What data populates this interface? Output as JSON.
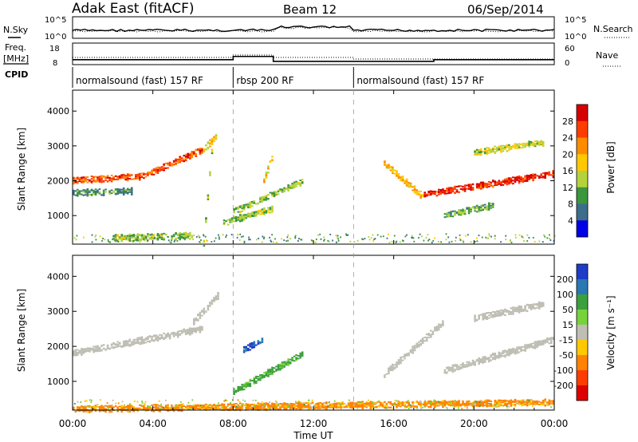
{
  "header": {
    "station": "Adak East (fitACF)",
    "beam": "Beam 12",
    "date": "06/Sep/2014"
  },
  "top_panels": {
    "left_labels": {
      "nsky": "N.Sky",
      "freq": "Freq.",
      "freq_unit": "[MHz]",
      "cpid": "CPID"
    },
    "right_labels": {
      "nsearch": "N.Search",
      "nave": "Nave"
    },
    "noise_ticks": [
      "10^5",
      "10^0"
    ],
    "freq_ticks": [
      "18",
      "8"
    ],
    "nave_ticks": [
      "60",
      "0"
    ]
  },
  "cpid_segments": [
    {
      "label": "normalsound (fast) 157 RF",
      "start_hour": 0,
      "end_hour": 8
    },
    {
      "label": "rbsp 200 RF",
      "start_hour": 8,
      "end_hour": 14
    },
    {
      "label": "normalsound (fast) 157 RF",
      "start_hour": 14,
      "end_hour": 24
    }
  ],
  "colorbars": {
    "power": {
      "label": "Power [dB]",
      "ticks": [
        "28",
        "24",
        "20",
        "16",
        "12",
        "8",
        "4"
      ],
      "colors": [
        "#d60000",
        "#ff3c00",
        "#ff8c00",
        "#ffc800",
        "#b4d23c",
        "#3c963c",
        "#3c6e8c",
        "#0000e6"
      ]
    },
    "velocity": {
      "label": "Velocity [m s⁻¹]",
      "ticks": [
        "200",
        "100",
        "50",
        "15",
        "-15",
        "-50",
        "-100",
        "-200"
      ],
      "colors": [
        "#1e3cc8",
        "#2878b4",
        "#3ca03c",
        "#78d23c",
        "#bebeb4",
        "#ffc800",
        "#ff8200",
        "#ff3c00",
        "#dc0000"
      ]
    }
  },
  "chart_data": [
    {
      "type": "heatmap",
      "title": "Power",
      "xlabel": "Time UT",
      "ylabel": "Slant Range [km]",
      "xticks": [
        "00:00",
        "04:00",
        "08:00",
        "12:00",
        "16:00",
        "20:00",
        "00:00"
      ],
      "xlim_hours": [
        0,
        24
      ],
      "ylim": [
        180,
        4600
      ],
      "yticks": [
        1000,
        2000,
        3000,
        4000
      ],
      "colorbar_range_db": [
        0,
        30
      ],
      "echo_bands": [
        {
          "t_start": 0.0,
          "t_end": 3.5,
          "r_start": 2000,
          "r_end": 2120,
          "power": 24
        },
        {
          "t_start": 3.5,
          "t_end": 6.5,
          "r_start": 2120,
          "r_end": 2900,
          "power": 24
        },
        {
          "t_start": 6.5,
          "t_end": 7.2,
          "r_start": 2900,
          "r_end": 3300,
          "power": 16
        },
        {
          "t_start": 0.0,
          "t_end": 3.0,
          "r_start": 1650,
          "r_end": 1700,
          "power": 8
        },
        {
          "t_start": 6.5,
          "t_end": 7.0,
          "r_start": 200,
          "r_end": 3500,
          "power": 12
        },
        {
          "t_start": 7.5,
          "t_end": 10.0,
          "r_start": 800,
          "r_end": 1200,
          "power": 12
        },
        {
          "t_start": 8.0,
          "t_end": 11.5,
          "r_start": 1100,
          "r_end": 2000,
          "power": 12
        },
        {
          "t_start": 9.5,
          "t_end": 10.0,
          "r_start": 2000,
          "r_end": 2800,
          "power": 16
        },
        {
          "t_start": 15.5,
          "t_end": 17.5,
          "r_start": 2500,
          "r_end": 1500,
          "power": 18
        },
        {
          "t_start": 17.5,
          "t_end": 24.0,
          "r_start": 1600,
          "r_end": 2200,
          "power": 26
        },
        {
          "t_start": 18.5,
          "t_end": 21.0,
          "r_start": 1000,
          "r_end": 1300,
          "power": 10
        },
        {
          "t_start": 20.0,
          "t_end": 23.5,
          "r_start": 2800,
          "r_end": 3100,
          "power": 14
        },
        {
          "t_start": 2.0,
          "t_end": 6.0,
          "r_start": 350,
          "r_end": 420,
          "power": 12
        }
      ]
    },
    {
      "type": "heatmap",
      "title": "Velocity",
      "xlabel": "Time UT",
      "ylabel": "Slant Range [km]",
      "xticks": [
        "00:00",
        "04:00",
        "08:00",
        "12:00",
        "16:00",
        "20:00",
        "00:00"
      ],
      "xlim_hours": [
        0,
        24
      ],
      "ylim": [
        180,
        4600
      ],
      "yticks": [
        1000,
        2000,
        3000,
        4000
      ],
      "colorbar_range": [
        -200,
        200
      ],
      "echo_bands": [
        {
          "t_start": 0.0,
          "t_end": 6.5,
          "r_start": 1800,
          "r_end": 2500,
          "velocity": 0
        },
        {
          "t_start": 6.0,
          "t_end": 7.3,
          "r_start": 2700,
          "r_end": 3500,
          "velocity": 0
        },
        {
          "t_start": 8.0,
          "t_end": 11.5,
          "r_start": 700,
          "r_end": 1800,
          "velocity": 60
        },
        {
          "t_start": 8.5,
          "t_end": 9.5,
          "r_start": 1900,
          "r_end": 2200,
          "velocity": 200
        },
        {
          "t_start": 15.5,
          "t_end": 18.5,
          "r_start": 1200,
          "r_end": 2700,
          "velocity": 0
        },
        {
          "t_start": 18.5,
          "t_end": 24.0,
          "r_start": 1300,
          "r_end": 2200,
          "velocity": 0
        },
        {
          "t_start": 20.0,
          "t_end": 23.5,
          "r_start": 2800,
          "r_end": 3200,
          "velocity": 0
        },
        {
          "t_start": 0.0,
          "t_end": 24.0,
          "r_start": 200,
          "r_end": 400,
          "velocity": -60
        }
      ]
    }
  ]
}
